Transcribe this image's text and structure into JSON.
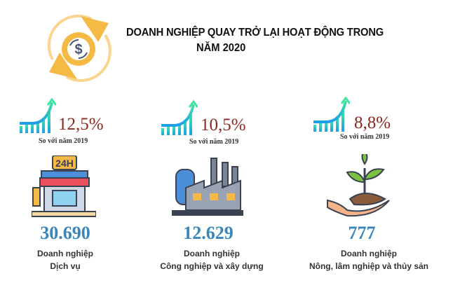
{
  "header": {
    "title_line1": "DOANH NGHIỆP QUAY TRỞ LẠI HOẠT ĐỘNG TRONG",
    "title_line2": "NĂM 2020",
    "icon": "dollar-cycle-icon"
  },
  "colors": {
    "percent": "#8b2a1f",
    "number": "#3a86ba",
    "accent": "#f5b945"
  },
  "sectors": [
    {
      "growth": "12,5%",
      "compare": "So với năm 2019",
      "count": "30.690",
      "label_line1": "Doanh nghiệp",
      "label_line2": "Dịch vụ",
      "icon": "store-24h-icon"
    },
    {
      "growth": "10,5%",
      "compare": "So với năm 2019",
      "count": "12.629",
      "label_line1": "Doanh nghiệp",
      "label_line2": "Công nghiệp và xây dựng",
      "icon": "factory-icon"
    },
    {
      "growth": "8,8%",
      "compare": "So với năm 2019",
      "count": "777",
      "label_line1": "Doanh nghiệp",
      "label_line2": "Nông, lâm nghiệp và thủy sản",
      "icon": "hand-plant-icon"
    }
  ]
}
